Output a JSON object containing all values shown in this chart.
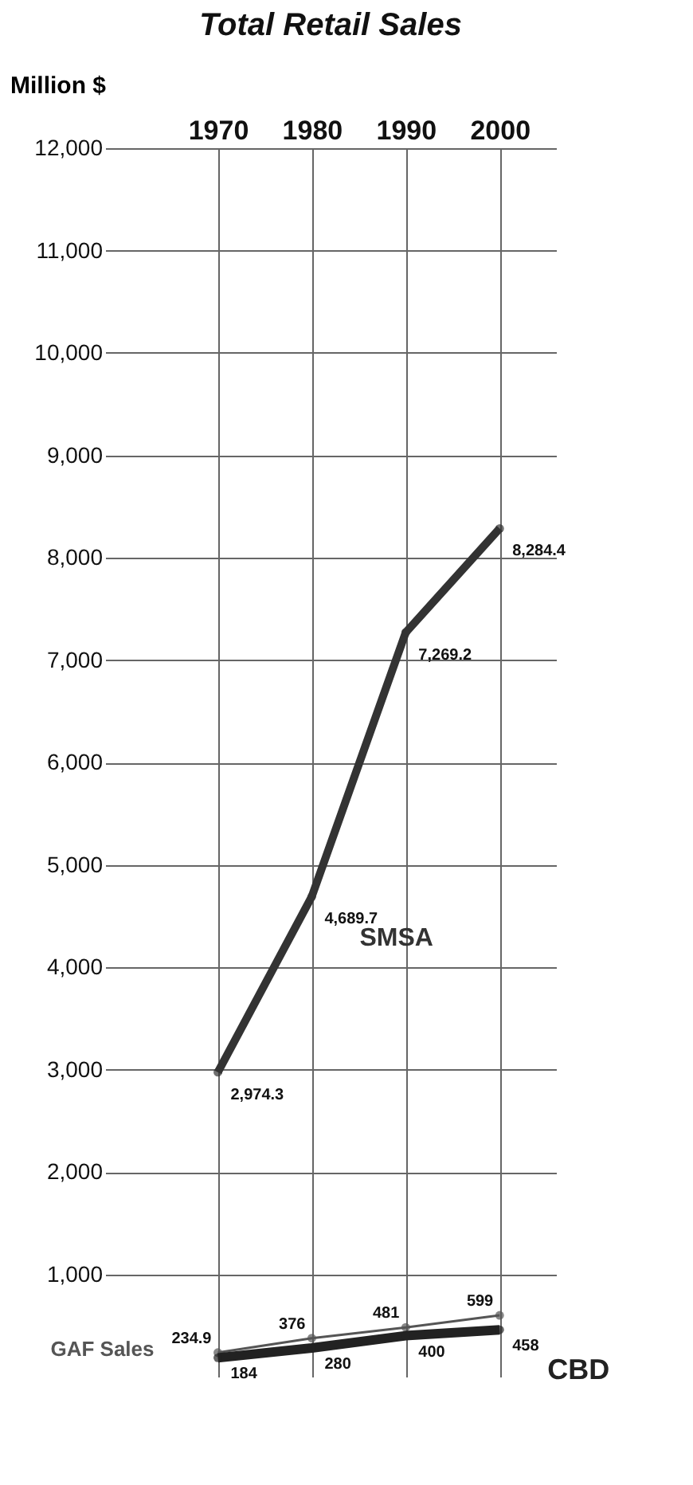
{
  "chart_data": {
    "type": "line",
    "title": "Total Retail Sales",
    "ylabel": "Million $",
    "x": [
      1970,
      1980,
      1990,
      2000
    ],
    "series": [
      {
        "name": "SMSA",
        "color": "#333333",
        "values": [
          2974.3,
          4689.7,
          7269.2,
          8284.4
        ],
        "value_labels": [
          "2,974.3",
          "4,689.7",
          "7,269.2",
          "8,284.4"
        ]
      },
      {
        "name": "GAF Sales",
        "color": "#555555",
        "values": [
          234.9,
          376,
          481,
          599
        ],
        "value_labels": [
          "234.9",
          "376",
          "481",
          "599"
        ]
      },
      {
        "name": "CBD",
        "color": "#222222",
        "values": [
          184,
          280,
          400,
          458
        ],
        "value_labels": [
          "184",
          "280",
          "400",
          "458"
        ]
      }
    ],
    "xlim": [
      1958,
      2006
    ],
    "ylim": [
      0,
      12000
    ],
    "xticks": [
      1970,
      1980,
      1990,
      2000
    ],
    "yticks": [
      {
        "value": 1000,
        "label": "1,000"
      },
      {
        "value": 2000,
        "label": "2,000"
      },
      {
        "value": 3000,
        "label": "3,000"
      },
      {
        "value": 4000,
        "label": "4,000"
      },
      {
        "value": 5000,
        "label": "5,000"
      },
      {
        "value": 6000,
        "label": "6,000"
      },
      {
        "value": 7000,
        "label": "7,000"
      },
      {
        "value": 8000,
        "label": "8,000"
      },
      {
        "value": 9000,
        "label": "9,000"
      },
      {
        "value": 10000,
        "label": "10,000"
      },
      {
        "value": 11000,
        "label": "11,000"
      },
      {
        "value": 12000,
        "label": "12,000"
      }
    ],
    "grid": true,
    "marker": "circle",
    "line_style": "solid"
  }
}
